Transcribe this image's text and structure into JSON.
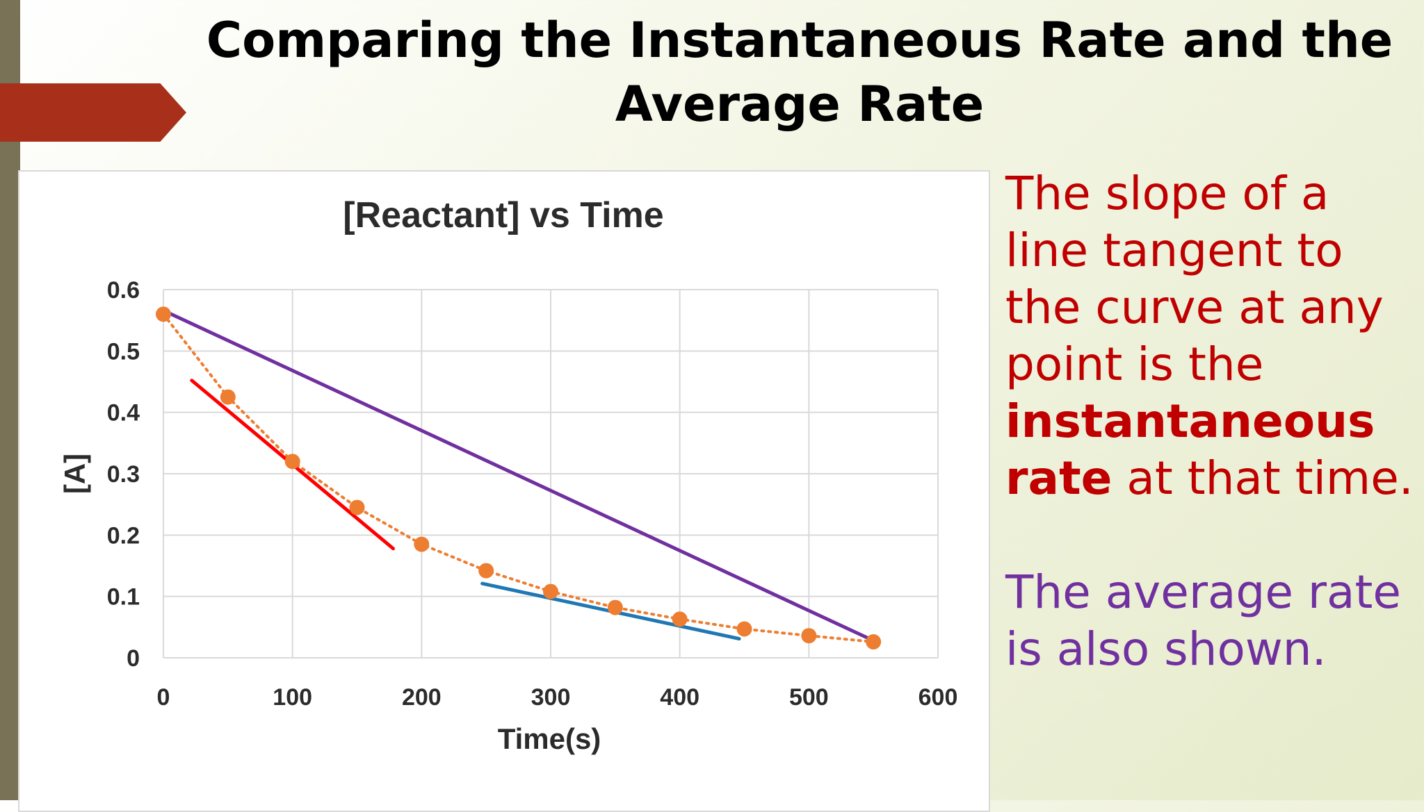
{
  "slide": {
    "title": "Comparing the Instantaneous Rate and the Average Rate",
    "instant_text": {
      "before": "The slope of a line tangent to the curve at any point is the ",
      "bold1": "instantaneous",
      "space": " ",
      "bold2": "rate",
      "after": " at that time."
    },
    "average_text": "The average rate is also shown."
  },
  "colors": {
    "left_bar": "#7a7256",
    "accent_tab": "#a8301a",
    "data_points": "#ed7d31",
    "tangent_early": "#ff0000",
    "tangent_late": "#1f77b4",
    "average_line": "#7030a0",
    "instant_text": "#c00000",
    "average_text": "#7030a0"
  },
  "chart_data": {
    "type": "scatter",
    "title": "[Reactant]  vs Time",
    "xlabel": "Time(s)",
    "ylabel": "[A]",
    "xlim": [
      0,
      600
    ],
    "ylim": [
      0,
      0.6
    ],
    "xticks": [
      0,
      100,
      200,
      300,
      400,
      500,
      600
    ],
    "yticks": [
      0,
      0.1,
      0.2,
      0.3,
      0.4,
      0.5,
      0.6
    ],
    "grid": true,
    "series": [
      {
        "kind": "data",
        "x": [
          0,
          50,
          100,
          150,
          200,
          250,
          300,
          350,
          400,
          450,
          500,
          550
        ],
        "y": [
          0.56,
          0.425,
          0.32,
          0.245,
          0.185,
          0.142,
          0.108,
          0.082,
          0.063,
          0.047,
          0.036,
          0.026
        ]
      },
      {
        "kind": "tangent",
        "color": "tangent_early",
        "x": [
          22,
          178
        ],
        "y": [
          0.452,
          0.178
        ]
      },
      {
        "kind": "tangent",
        "color": "tangent_late",
        "x": [
          247,
          446
        ],
        "y": [
          0.121,
          0.031
        ]
      },
      {
        "kind": "average",
        "color": "average_line",
        "x": [
          0,
          550
        ],
        "y": [
          0.566,
          0.028
        ]
      }
    ]
  }
}
